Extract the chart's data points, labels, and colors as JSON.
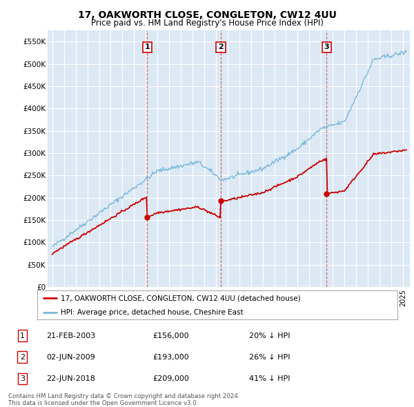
{
  "title": "17, OAKWORTH CLOSE, CONGLETON, CW12 4UU",
  "subtitle": "Price paid vs. HM Land Registry's House Price Index (HPI)",
  "hpi_color": "#7ab8d9",
  "price_color": "#cc0000",
  "background_color": "#dce9f5",
  "plot_bg_color": "#dce9f5",
  "ylim": [
    0,
    575000
  ],
  "yticks": [
    0,
    50000,
    100000,
    150000,
    200000,
    250000,
    300000,
    350000,
    400000,
    450000,
    500000,
    550000
  ],
  "ytick_labels": [
    "£0",
    "£50K",
    "£100K",
    "£150K",
    "£200K",
    "£250K",
    "£300K",
    "£350K",
    "£400K",
    "£450K",
    "£500K",
    "£550K"
  ],
  "legend_label_red": "17, OAKWORTH CLOSE, CONGLETON, CW12 4UU (detached house)",
  "legend_label_blue": "HPI: Average price, detached house, Cheshire East",
  "sale1_label": "1",
  "sale1_date": "21-FEB-2003",
  "sale1_price": "£156,000",
  "sale1_pct": "20% ↓ HPI",
  "sale1_year": 2003.125,
  "sale1_value": 156000,
  "sale2_label": "2",
  "sale2_date": "02-JUN-2009",
  "sale2_price": "£193,000",
  "sale2_pct": "26% ↓ HPI",
  "sale2_year": 2009.417,
  "sale2_value": 193000,
  "sale3_label": "3",
  "sale3_date": "22-JUN-2018",
  "sale3_price": "£209,000",
  "sale3_pct": "41% ↓ HPI",
  "sale3_year": 2018.472,
  "sale3_value": 209000,
  "footer": "Contains HM Land Registry data © Crown copyright and database right 2024.\nThis data is licensed under the Open Government Licence v3.0."
}
